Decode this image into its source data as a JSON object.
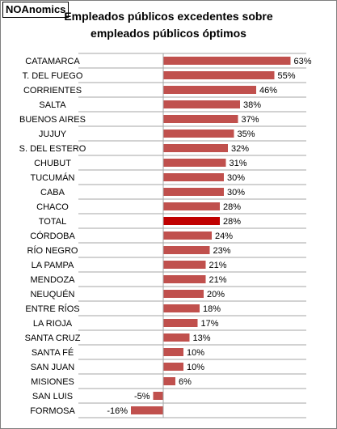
{
  "brand": "NOAnomics",
  "colors": {
    "bar": "#c0504d",
    "highlight": "#c00000",
    "grid": "#a6a6a6"
  },
  "chart_data": {
    "type": "bar",
    "orientation": "horizontal",
    "title_line1": "Empleados públicos excedentes sobre",
    "title_line2": "empleados públicos óptimos",
    "categories": [
      "CATAMARCA",
      "T. DEL FUEGO",
      "CORRIENTES",
      "SALTA",
      "BUENOS AIRES",
      "JUJUY",
      "S. DEL ESTERO",
      "CHUBUT",
      "TUCUMÁN",
      "CABA",
      "CHACO",
      "TOTAL",
      "CÓRDOBA",
      "RÍO NEGRO",
      "LA PAMPA",
      "MENDOZA",
      "NEUQUÉN",
      "ENTRE RÍOS",
      "LA RIOJA",
      "SANTA CRUZ",
      "SANTA FÉ",
      "SAN JUAN",
      "MISIONES",
      "SAN LUIS",
      "FORMOSA"
    ],
    "values": [
      63,
      55,
      46,
      38,
      37,
      35,
      32,
      31,
      30,
      30,
      28,
      28,
      24,
      23,
      21,
      21,
      20,
      18,
      17,
      13,
      10,
      10,
      6,
      -5,
      -16
    ],
    "value_labels": [
      "63%",
      "55%",
      "46%",
      "38%",
      "37%",
      "35%",
      "32%",
      "31%",
      "30%",
      "30%",
      "28%",
      "28%",
      "24%",
      "23%",
      "21%",
      "21%",
      "20%",
      "18%",
      "17%",
      "13%",
      "10%",
      "10%",
      "6%",
      "-5%",
      "-16%"
    ],
    "highlight": "TOTAL",
    "xlim": [
      -16,
      65
    ],
    "grid": true,
    "legend": "none"
  }
}
